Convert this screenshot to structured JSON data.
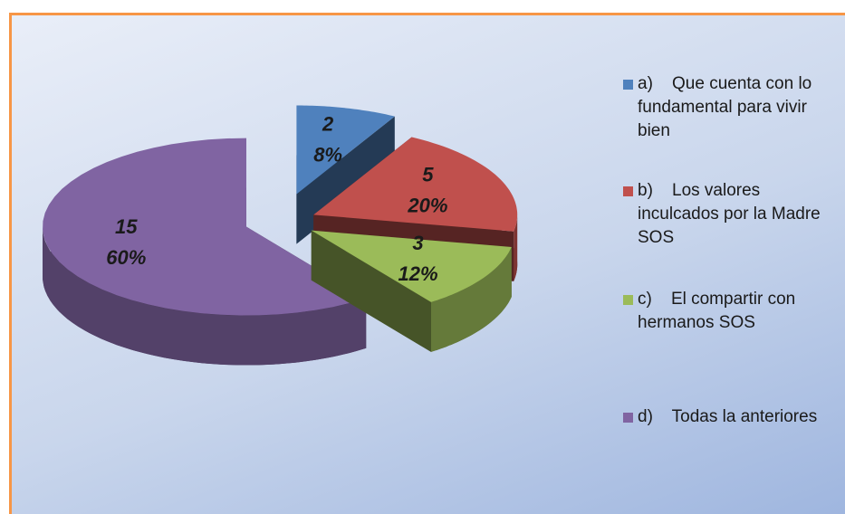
{
  "chart_data": {
    "type": "pie",
    "categories": [
      "a)    Que cuenta con lo fundamental para vivir bien",
      "b)    Los valores inculcados por la Madre SOS",
      "c)    El compartir con hermanos SOS",
      "d)    Todas la anteriores"
    ],
    "counts": [
      2,
      5,
      3,
      15
    ],
    "values": [
      8,
      20,
      12,
      60
    ],
    "value_labels": [
      "8%",
      "20%",
      "12%",
      "60%"
    ],
    "colors": [
      "#4f81bd",
      "#c0504d",
      "#9bbb59",
      "#8064a2"
    ],
    "legend": "right"
  }
}
